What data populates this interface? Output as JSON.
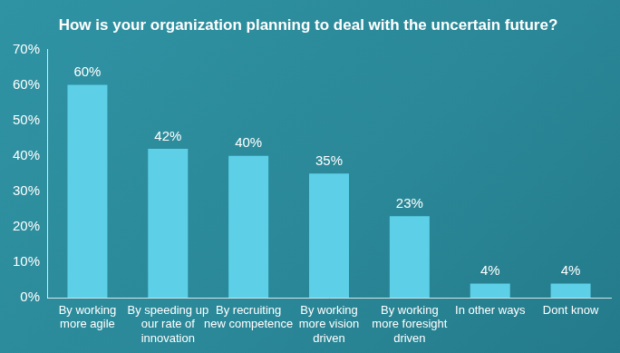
{
  "chart_data": {
    "type": "bar",
    "title": "How is your organization planning to deal with the uncertain future?",
    "categories": [
      "By working more agile",
      "By speeding up our rate of innovation",
      "By recruiting new competence",
      "By working more vision driven",
      "By working more foresight driven",
      "In other ways",
      "Dont know"
    ],
    "values": [
      60,
      42,
      40,
      35,
      23,
      4,
      4
    ],
    "value_labels": [
      "60%",
      "42%",
      "40%",
      "35%",
      "23%",
      "4%",
      "4%"
    ],
    "color": "#5dd0e8",
    "ylim": [
      0,
      70
    ],
    "yticks": [
      {
        "value": 0,
        "label": "0%"
      },
      {
        "value": 10,
        "label": "10%"
      },
      {
        "value": 20,
        "label": "20%"
      },
      {
        "value": 30,
        "label": "30%"
      },
      {
        "value": 40,
        "label": "40%"
      },
      {
        "value": 50,
        "label": "50%"
      },
      {
        "value": 60,
        "label": "60%"
      },
      {
        "value": 70,
        "label": "70%"
      }
    ],
    "grid": false,
    "data_labels": true
  }
}
